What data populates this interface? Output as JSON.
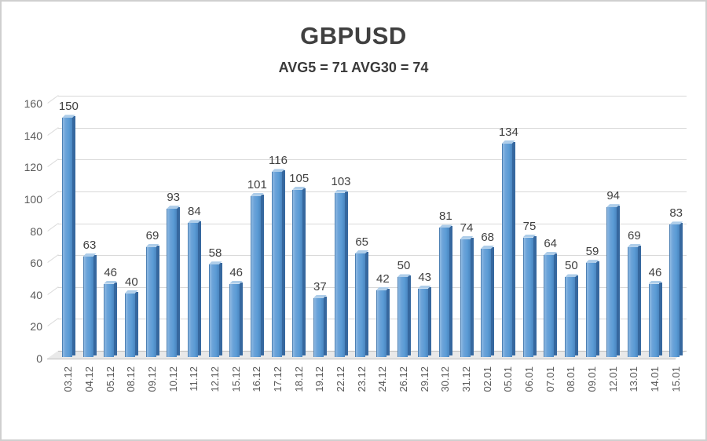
{
  "chart_data": {
    "type": "bar",
    "title": "GBPUSD",
    "subtitle": "AVG5 = 71 AVG30 = 74",
    "avg5": 71,
    "avg30": 74,
    "categories": [
      "03.12",
      "04.12",
      "05.12",
      "08.12",
      "09.12",
      "10.12",
      "11.12",
      "12.12",
      "15.12",
      "16.12",
      "17.12",
      "18.12",
      "19.12",
      "22.12",
      "23.12",
      "24.12",
      "26.12",
      "29.12",
      "30.12",
      "31.12",
      "02.01",
      "05.01",
      "06.01",
      "07.01",
      "08.01",
      "09.01",
      "12.01",
      "13.01",
      "14.01",
      "15.01"
    ],
    "values": [
      150,
      63,
      46,
      40,
      69,
      93,
      84,
      58,
      46,
      101,
      116,
      105,
      37,
      103,
      65,
      42,
      50,
      43,
      81,
      74,
      68,
      134,
      75,
      64,
      50,
      59,
      94,
      69,
      46,
      83
    ],
    "xlabel": "",
    "ylabel": "",
    "ylim": [
      0,
      160
    ],
    "ytick_step": 20,
    "grid": true,
    "legend_position": "none",
    "style": "3d-column",
    "colors": {
      "bar_face": "#5b9bd5",
      "bar_face_light": "#8fb9e2",
      "bar_side": "#36689f",
      "bar_top": "#aecde9",
      "gridline": "#d9d9d9",
      "floor": "#e9e9e9",
      "title_text": "#404040",
      "value_label_text": "#404040",
      "axis_tick_text": "#595959",
      "background": "#ffffff"
    }
  }
}
